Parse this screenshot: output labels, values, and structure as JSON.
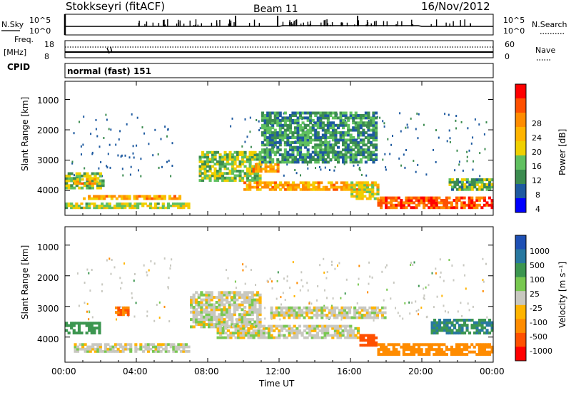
{
  "header": {
    "station": "Stokkseyri (fitACF)",
    "beam": "Beam 11",
    "date": "16/Nov/2012"
  },
  "noise_panel": {
    "left_label": "N.Sky",
    "right_label": "N.Search",
    "left_ticks": [
      "10^5",
      "10^0"
    ],
    "right_ticks": [
      "10^5",
      "10^0"
    ]
  },
  "freq_panel": {
    "left_label_top": "Freq.",
    "left_label_unit": "[MHz]",
    "right_label": "Nave",
    "left_ticks": [
      "18",
      "8"
    ],
    "right_ticks": [
      "60",
      "0"
    ]
  },
  "cpid_panel": {
    "label": "CPID",
    "text": "normal (fast) 151"
  },
  "power_panel": {
    "ylabel": "Slant Range [km]",
    "yticks": [
      "4000",
      "3000",
      "2000",
      "1000"
    ],
    "colorbar_label": "Power [dB]",
    "colorbar_ticks": [
      "28",
      "24",
      "20",
      "16",
      "12",
      "8",
      "4"
    ],
    "colorbar_colors": [
      "#ff0000",
      "#ff5000",
      "#ff8c00",
      "#ffb400",
      "#f0d000",
      "#60c060",
      "#3c8c50",
      "#1e5aa0",
      "#0000ff"
    ]
  },
  "velocity_panel": {
    "ylabel": "Slant Range [km]",
    "yticks": [
      "4000",
      "3000",
      "2000",
      "1000"
    ],
    "colorbar_label": "Velocity [m s⁻¹]",
    "colorbar_ticks": [
      "1000",
      "500",
      "100",
      "25",
      "-25",
      "-100",
      "-500",
      "-1000"
    ],
    "colorbar_colors": [
      "#1e50b4",
      "#2878a0",
      "#3c9650",
      "#78c850",
      "#c8c8c0",
      "#ffb400",
      "#ff8c00",
      "#ff5000",
      "#ff0000"
    ]
  },
  "x_axis": {
    "ticks": [
      "00:00",
      "04:00",
      "08:00",
      "12:00",
      "16:00",
      "20:00",
      "00:00"
    ],
    "label": "Time UT"
  },
  "chart_data": [
    {
      "type": "heatmap",
      "name": "power",
      "xlabel": "Time UT",
      "ylabel": "Slant Range [km]",
      "xlim": [
        0,
        24
      ],
      "ylim": [
        180,
        4600
      ],
      "clim": [
        0,
        30
      ],
      "units": "dB",
      "regions": [
        {
          "t0": 0.0,
          "t1": 2.2,
          "r0": 1050,
          "r1": 1600,
          "level": 12
        },
        {
          "t0": 0.5,
          "t1": 2.0,
          "r0": 1200,
          "r1": 1400,
          "level": 20
        },
        {
          "t0": 0.0,
          "t1": 7.0,
          "r0": 400,
          "r1": 600,
          "level": 14
        },
        {
          "t0": 1.0,
          "t1": 6.5,
          "r0": 700,
          "r1": 850,
          "level": 20
        },
        {
          "t0": 7.5,
          "t1": 11.0,
          "r0": 1300,
          "r1": 2300,
          "level": 12
        },
        {
          "t0": 10.0,
          "t1": 17.0,
          "r0": 1000,
          "r1": 1300,
          "level": 20
        },
        {
          "t0": 10.5,
          "t1": 12.0,
          "r0": 1600,
          "r1": 1900,
          "level": 22
        },
        {
          "t0": 11.0,
          "t1": 17.5,
          "r0": 1900,
          "r1": 3600,
          "level": 8
        },
        {
          "t0": 16.0,
          "t1": 17.6,
          "r0": 700,
          "r1": 1300,
          "level": 16
        },
        {
          "t0": 17.5,
          "t1": 24.0,
          "r0": 400,
          "r1": 800,
          "level": 26
        },
        {
          "t0": 21.5,
          "t1": 24.0,
          "r0": 1000,
          "r1": 1400,
          "level": 10
        }
      ]
    },
    {
      "type": "heatmap",
      "name": "velocity",
      "xlabel": "Time UT",
      "ylabel": "Slant Range [km]",
      "xlim": [
        0,
        24
      ],
      "ylim": [
        180,
        4600
      ],
      "clim": [
        -1000,
        1000
      ],
      "units": "m s^-1",
      "regions": [
        {
          "t0": 0.0,
          "t1": 2.0,
          "r0": 1100,
          "r1": 1500,
          "level": 200
        },
        {
          "t0": 0.5,
          "t1": 7.0,
          "r0": 500,
          "r1": 800,
          "level": 0
        },
        {
          "t0": 2.8,
          "t1": 3.6,
          "r0": 1700,
          "r1": 2000,
          "level": -300
        },
        {
          "t0": 7.0,
          "t1": 11.0,
          "r0": 1300,
          "r1": 2500,
          "level": 0
        },
        {
          "t0": 8.5,
          "t1": 16.5,
          "r0": 950,
          "r1": 1400,
          "level": 0
        },
        {
          "t0": 11.5,
          "t1": 18.0,
          "r0": 1600,
          "r1": 2000,
          "level": 0
        },
        {
          "t0": 16.5,
          "t1": 17.5,
          "r0": 700,
          "r1": 1100,
          "level": -600
        },
        {
          "t0": 17.5,
          "t1": 24.0,
          "r0": 400,
          "r1": 800,
          "level": -200
        },
        {
          "t0": 20.5,
          "t1": 24.0,
          "r0": 1100,
          "r1": 1600,
          "level": 300
        }
      ]
    }
  ]
}
